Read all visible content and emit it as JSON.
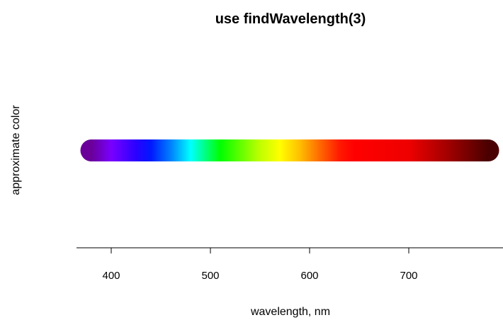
{
  "chart_data": {
    "type": "spectrum-strip",
    "title": "use findWavelength(3)",
    "xlabel": "wavelength, nm",
    "ylabel": "approximate color",
    "xlim": [
      365,
      795
    ],
    "x_ticks": [
      400,
      500,
      600,
      700
    ],
    "spectrum": {
      "from_nm": 380,
      "to_nm": 780,
      "color_stops": [
        {
          "nm": 380,
          "color": "#6a0099"
        },
        {
          "nm": 400,
          "color": "#7a00ff"
        },
        {
          "nm": 425,
          "color": "#2a00ff"
        },
        {
          "nm": 440,
          "color": "#0018ff"
        },
        {
          "nm": 460,
          "color": "#0080ff"
        },
        {
          "nm": 480,
          "color": "#00ffff"
        },
        {
          "nm": 495,
          "color": "#00ff80"
        },
        {
          "nm": 510,
          "color": "#00ff00"
        },
        {
          "nm": 530,
          "color": "#60ff00"
        },
        {
          "nm": 550,
          "color": "#c0ff00"
        },
        {
          "nm": 570,
          "color": "#ffff00"
        },
        {
          "nm": 590,
          "color": "#ffbf00"
        },
        {
          "nm": 610,
          "color": "#ff6a00"
        },
        {
          "nm": 630,
          "color": "#ff1a00"
        },
        {
          "nm": 645,
          "color": "#ff0000"
        },
        {
          "nm": 700,
          "color": "#ee0000"
        },
        {
          "nm": 740,
          "color": "#a00000"
        },
        {
          "nm": 780,
          "color": "#4a0000"
        }
      ]
    }
  }
}
